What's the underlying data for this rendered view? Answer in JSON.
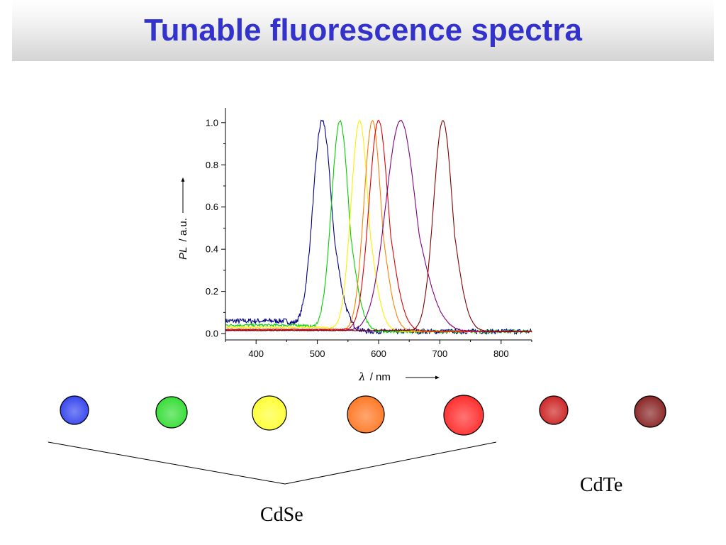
{
  "slide": {
    "title": "Tunable fluorescence spectra"
  },
  "chart_data": {
    "type": "line",
    "xlabel_symbol": "λ",
    "xlabel_unit": "/ nm",
    "ylabel_symbol": "PL",
    "ylabel_unit": "/ a.u.",
    "xlim": [
      350,
      850
    ],
    "ylim": [
      -0.03,
      1.07
    ],
    "xticks": [
      400,
      500,
      600,
      700,
      800
    ],
    "yticks": [
      0.0,
      0.2,
      0.4,
      0.6,
      0.8,
      1.0
    ],
    "ytick_labels": [
      "0.0",
      "0.2",
      "0.4",
      "0.6",
      "0.8",
      "1.0"
    ],
    "grid": false,
    "series": [
      {
        "peak_nm": 508,
        "fwhm_nm": 36,
        "color": "#000080",
        "noise": 0.012,
        "baseline_left": 0.05
      },
      {
        "peak_nm": 537,
        "fwhm_nm": 33,
        "color": "#00d000",
        "noise": 0.006,
        "baseline_left": 0.03
      },
      {
        "peak_nm": 569,
        "fwhm_nm": 33,
        "color": "#ffee00",
        "noise": 0.003,
        "baseline_left": 0.02
      },
      {
        "peak_nm": 590,
        "fwhm_nm": 33,
        "color": "#ff8000",
        "noise": 0.002,
        "baseline_left": 0.01
      },
      {
        "peak_nm": 600,
        "fwhm_nm": 37,
        "color": "#e00000",
        "noise": 0.002,
        "baseline_left": 0.01
      },
      {
        "peak_nm": 636,
        "fwhm_nm": 57,
        "color": "#800080",
        "noise": 0.002,
        "baseline_left": 0.005
      },
      {
        "peak_nm": 705,
        "fwhm_nm": 36,
        "color": "#800000",
        "noise": 0.002,
        "baseline_left": 0.005
      }
    ]
  },
  "samples": {
    "dots": [
      {
        "color": "#3344ee"
      },
      {
        "color": "#33dd33"
      },
      {
        "color": "#ffff33"
      },
      {
        "color": "#ff7722"
      },
      {
        "color": "#ff2a2a"
      },
      {
        "color": "#cc2222"
      },
      {
        "color": "#882222"
      }
    ],
    "cdse_label": "CdSe",
    "cdte_label": "CdTe"
  }
}
